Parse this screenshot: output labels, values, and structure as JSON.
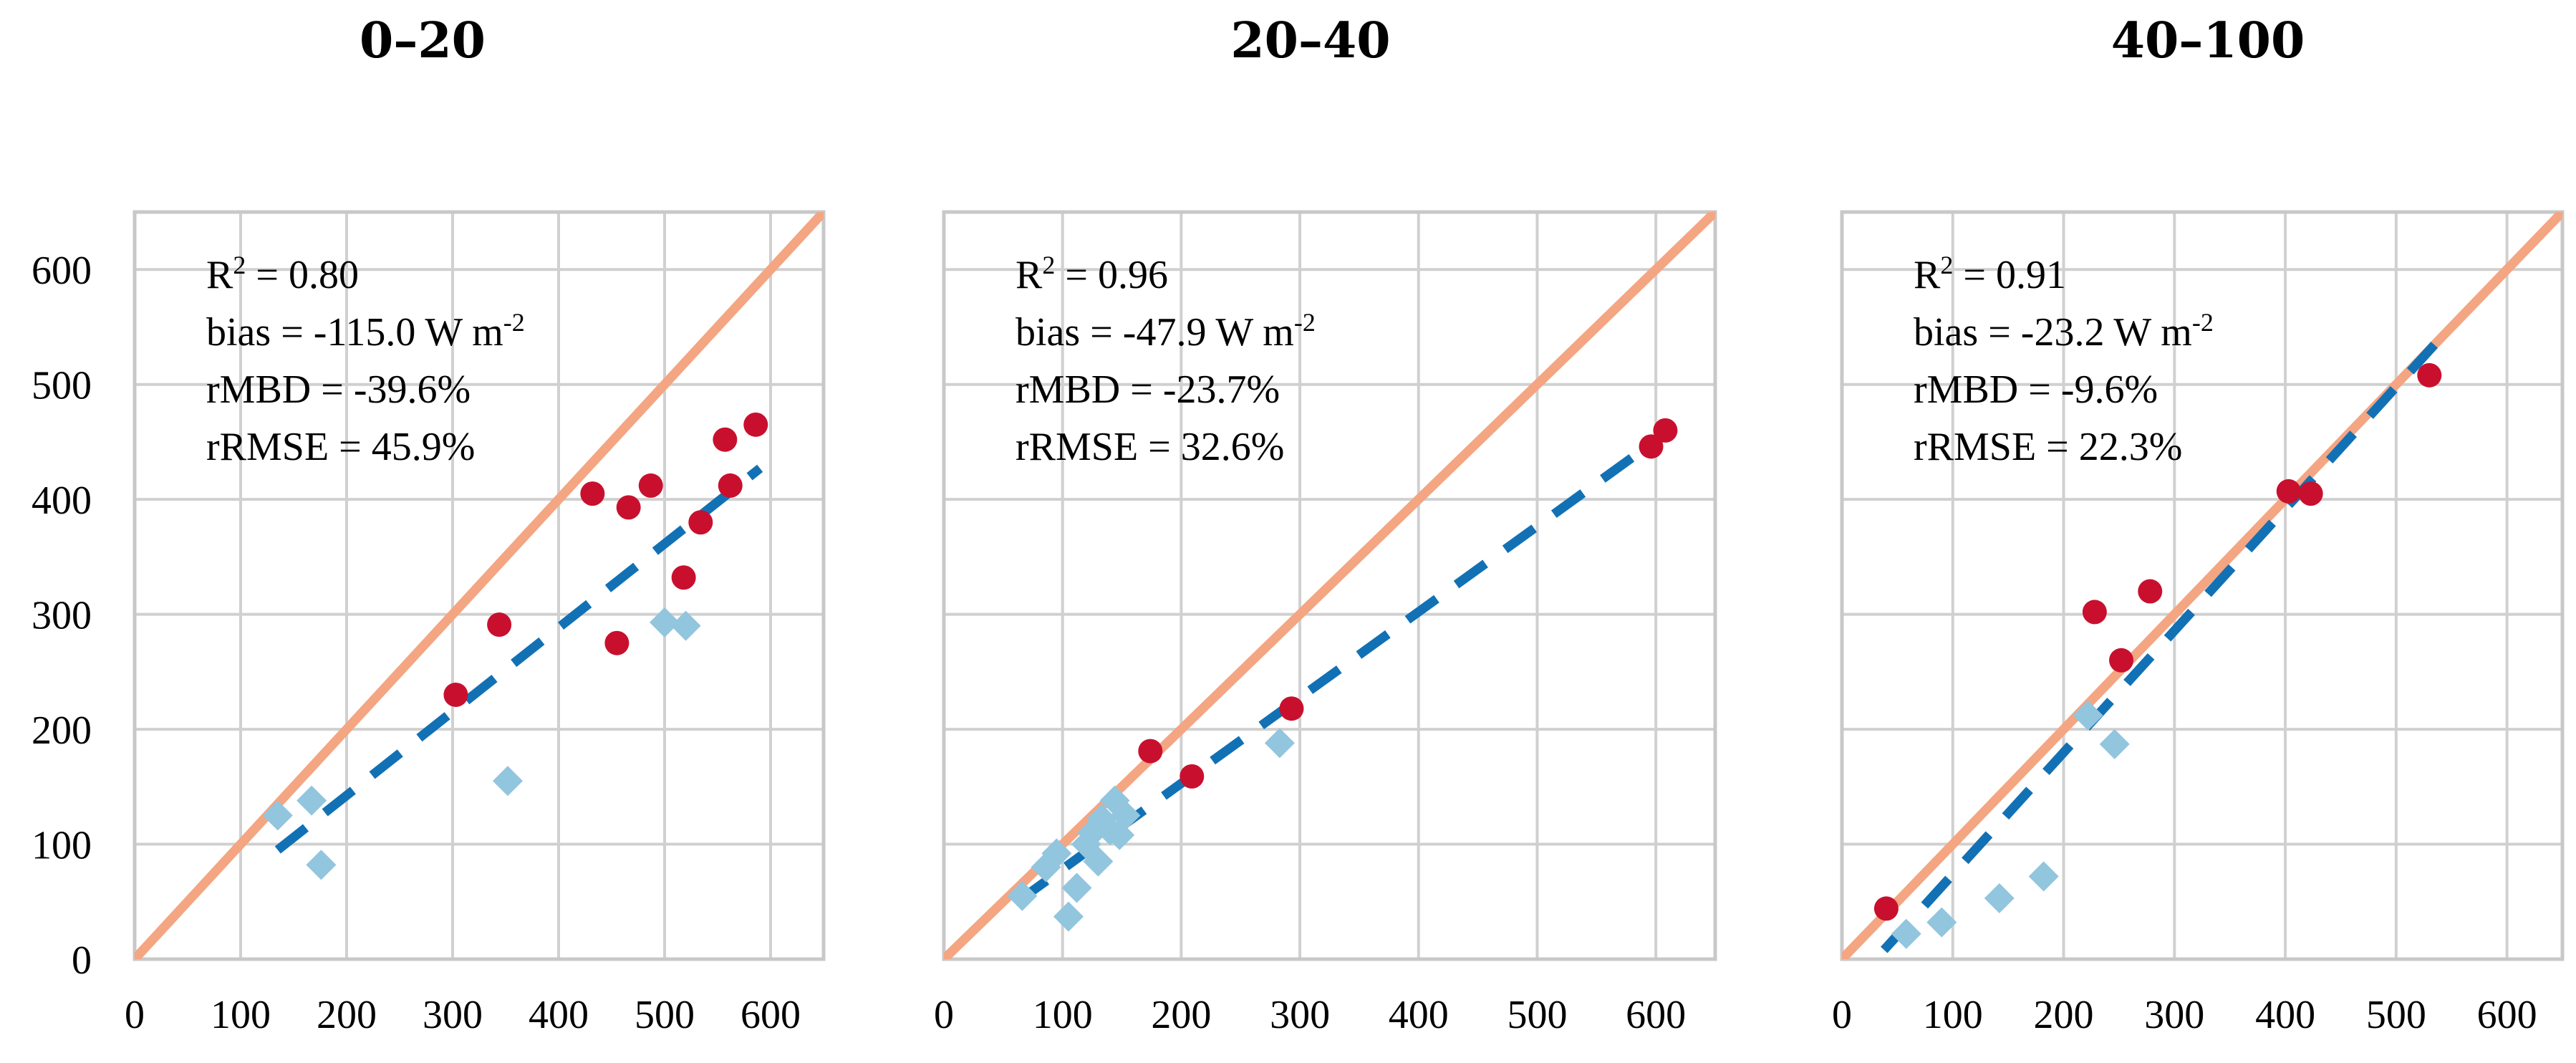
{
  "chart_data": [
    {
      "type": "scatter",
      "title": "0–20",
      "xlim": [
        0,
        650
      ],
      "ylim": [
        0,
        650
      ],
      "xticks": [
        "0",
        "100",
        "200",
        "300",
        "400",
        "500",
        "600"
      ],
      "yticks": [
        "0",
        "100",
        "200",
        "300",
        "400",
        "500",
        "600"
      ],
      "stats": {
        "r2_prefix": "R",
        "r2_sup": "2",
        "r2_value": " = 0.80",
        "bias_text": "bias = -115.0 W m",
        "bias_sup": "-2",
        "rmbd_text": "rMBD = -39.6%",
        "rrmse_text": "rRMSE = 45.9%"
      },
      "one_to_one": [
        [
          0,
          0
        ],
        [
          650,
          650
        ]
      ],
      "fit_line": [
        [
          135,
          95
        ],
        [
          590,
          427
        ]
      ],
      "colors": {
        "one_to_one": "#f4a582",
        "fit": "#1271b5",
        "circle": "#c8102e",
        "diamond": "#92c5de"
      },
      "series": [
        {
          "name": "circles",
          "marker": "circle",
          "points": [
            [
              303,
              230
            ],
            [
              344,
              291
            ],
            [
              432,
              405
            ],
            [
              455,
              275
            ],
            [
              466,
              393
            ],
            [
              487,
              412
            ],
            [
              518,
              332
            ],
            [
              534,
              380
            ],
            [
              557,
              452
            ],
            [
              562,
              412
            ],
            [
              586,
              465
            ]
          ]
        },
        {
          "name": "diamonds",
          "marker": "diamond",
          "points": [
            [
              135,
              125
            ],
            [
              167,
              138
            ],
            [
              176,
              82
            ],
            [
              352,
              155
            ],
            [
              500,
              293
            ],
            [
              520,
              290
            ]
          ]
        }
      ]
    },
    {
      "type": "scatter",
      "title": "20–40",
      "xlim": [
        0,
        650
      ],
      "ylim": [
        0,
        650
      ],
      "xticks": [
        "0",
        "100",
        "200",
        "300",
        "400",
        "500",
        "600"
      ],
      "yticks": [],
      "stats": {
        "r2_prefix": "R",
        "r2_sup": "2",
        "r2_value": " = 0.96",
        "bias_text": "bias = -47.9 W m",
        "bias_sup": "-2",
        "rmbd_text": "rMBD = -23.7%",
        "rrmse_text": "rRMSE = 32.6%"
      },
      "one_to_one": [
        [
          0,
          0
        ],
        [
          650,
          650
        ]
      ],
      "fit_line": [
        [
          62,
          50
        ],
        [
          605,
          455
        ]
      ],
      "colors": {
        "one_to_one": "#f4a582",
        "fit": "#1271b5",
        "circle": "#c8102e",
        "diamond": "#92c5de"
      },
      "series": [
        {
          "name": "circles",
          "marker": "circle",
          "points": [
            [
              174,
              181
            ],
            [
              209,
              159
            ],
            [
              293,
              218
            ],
            [
              596,
              446
            ],
            [
              608,
              460
            ]
          ]
        },
        {
          "name": "diamonds",
          "marker": "diamond",
          "points": [
            [
              66,
              55
            ],
            [
              86,
              80
            ],
            [
              95,
              92
            ],
            [
              105,
              37
            ],
            [
              112,
              62
            ],
            [
              120,
              100
            ],
            [
              125,
              110
            ],
            [
              130,
              85
            ],
            [
              133,
              122
            ],
            [
              140,
              112
            ],
            [
              144,
              138
            ],
            [
              148,
              108
            ],
            [
              153,
              125
            ],
            [
              283,
              188
            ]
          ]
        }
      ]
    },
    {
      "type": "scatter",
      "title": "40–100",
      "xlim": [
        0,
        650
      ],
      "ylim": [
        0,
        650
      ],
      "xticks": [
        "0",
        "100",
        "200",
        "300",
        "400",
        "500",
        "600"
      ],
      "yticks": [],
      "stats": {
        "r2_prefix": "R",
        "r2_sup": "2",
        "r2_value": " = 0.91",
        "bias_text": "bias = -23.2 W m",
        "bias_sup": "-2",
        "rmbd_text": "rMBD = -9.6%",
        "rrmse_text": "rRMSE = 22.3%"
      },
      "one_to_one": [
        [
          0,
          0
        ],
        [
          650,
          650
        ]
      ],
      "fit_line": [
        [
          38,
          8
        ],
        [
          535,
          535
        ]
      ],
      "colors": {
        "one_to_one": "#f4a582",
        "fit": "#1271b5",
        "circle": "#c8102e",
        "diamond": "#92c5de"
      },
      "series": [
        {
          "name": "circles",
          "marker": "circle",
          "points": [
            [
              40,
              44
            ],
            [
              228,
              302
            ],
            [
              252,
              260
            ],
            [
              278,
              320
            ],
            [
              403,
              407
            ],
            [
              423,
              405
            ],
            [
              530,
              508
            ]
          ]
        },
        {
          "name": "diamonds",
          "marker": "diamond",
          "points": [
            [
              58,
              22
            ],
            [
              90,
              32
            ],
            [
              142,
              53
            ],
            [
              182,
              72
            ],
            [
              222,
              212
            ],
            [
              246,
              187
            ]
          ]
        }
      ]
    }
  ]
}
